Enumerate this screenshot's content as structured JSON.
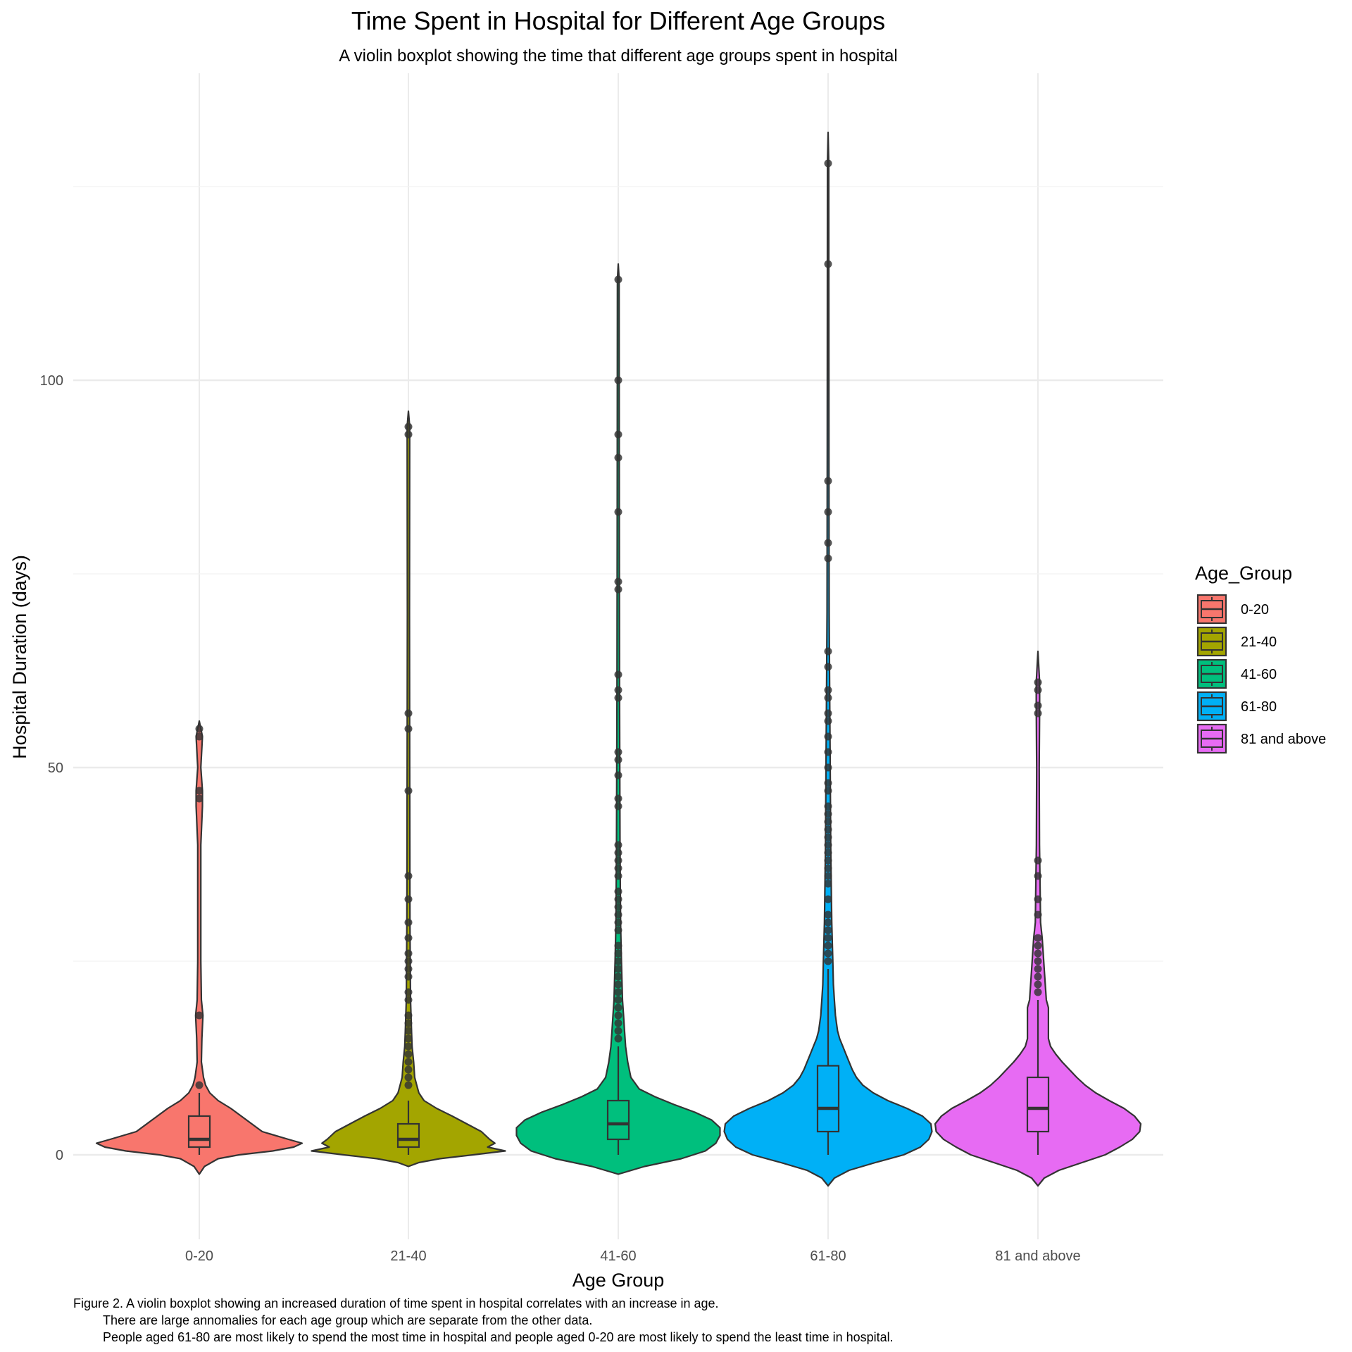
{
  "chart_data": {
    "type": "violin",
    "title": "Time Spent in Hospital for Different Age Groups",
    "subtitle": "A violin boxplot showing the time that different age groups spent in hospital",
    "xlabel": "Age Group",
    "ylabel": "Hospital Duration (days)",
    "ylim": [
      -11,
      138
    ],
    "y_ticks": [
      0,
      50,
      100
    ],
    "grid": true,
    "legend": {
      "title": "Age_Group",
      "position": "right",
      "entries": [
        "0-20",
        "21-40",
        "41-60",
        "61-80",
        "81 and above"
      ]
    },
    "caption": [
      "Figure 2. A violin boxplot showing an increased duration of time spent in hospital correlates with an increase in age.",
      "There are large annomalies for each age group which are separate from the other data.",
      "People aged 61-80 are most likely to spend the most time in hospital and people aged 0-20 are most likely to spend the least time in hospital."
    ],
    "categories": [
      "0-20",
      "21-40",
      "41-60",
      "61-80",
      "81 and above"
    ],
    "series": [
      {
        "name": "0-20",
        "color": "#F8766D",
        "box": {
          "min": 0,
          "q1": 1,
          "median": 2,
          "q3": 5,
          "whisker_high": 8
        },
        "violin_range": [
          -2.5,
          56
        ],
        "outliers": [
          9,
          18,
          46,
          47,
          54,
          55
        ]
      },
      {
        "name": "21-40",
        "color": "#A3A500",
        "box": {
          "min": 0,
          "q1": 1,
          "median": 2,
          "q3": 4,
          "whisker_high": 7
        },
        "violin_range": [
          -1.5,
          96
        ],
        "outliers": [
          9,
          10,
          11,
          12,
          13,
          14,
          15,
          16,
          17,
          18,
          20,
          21,
          23,
          24,
          25,
          26,
          28,
          30,
          33,
          36,
          47,
          55,
          57,
          93,
          94
        ]
      },
      {
        "name": "41-60",
        "color": "#00BF7D",
        "box": {
          "min": 0,
          "q1": 2,
          "median": 4,
          "q3": 7,
          "whisker_high": 14
        },
        "violin_range": [
          -2.5,
          115
        ],
        "outliers": [
          15,
          16,
          17,
          18,
          19,
          20,
          21,
          22,
          23,
          24,
          25,
          26,
          27,
          29,
          30,
          31,
          32,
          33,
          34,
          36,
          37,
          38,
          39,
          40,
          45,
          46,
          49,
          51,
          52,
          59,
          60,
          62,
          73,
          74,
          83,
          90,
          93,
          100,
          113
        ]
      },
      {
        "name": "61-80",
        "color": "#00B0F6",
        "box": {
          "min": 0,
          "q1": 3,
          "median": 6,
          "q3": 11.5,
          "whisker_high": 24
        },
        "violin_range": [
          -4,
          132
        ],
        "outliers": [
          25,
          26,
          27,
          28,
          29,
          30,
          31,
          33,
          35,
          36,
          37,
          38,
          39,
          40,
          41,
          42,
          43,
          44,
          45,
          47,
          48,
          50,
          52,
          54,
          56,
          57,
          59,
          60,
          63,
          65,
          77,
          79,
          83,
          87,
          115,
          128
        ]
      },
      {
        "name": "81 and above",
        "color": "#E76BF3",
        "box": {
          "min": 0,
          "q1": 3,
          "median": 6,
          "q3": 10,
          "whisker_high": 20
        },
        "violin_range": [
          -4,
          65
        ],
        "outliers": [
          21,
          22,
          23,
          24,
          25,
          26,
          27,
          28,
          31,
          33,
          36,
          38,
          57,
          58,
          60,
          61
        ]
      }
    ]
  }
}
